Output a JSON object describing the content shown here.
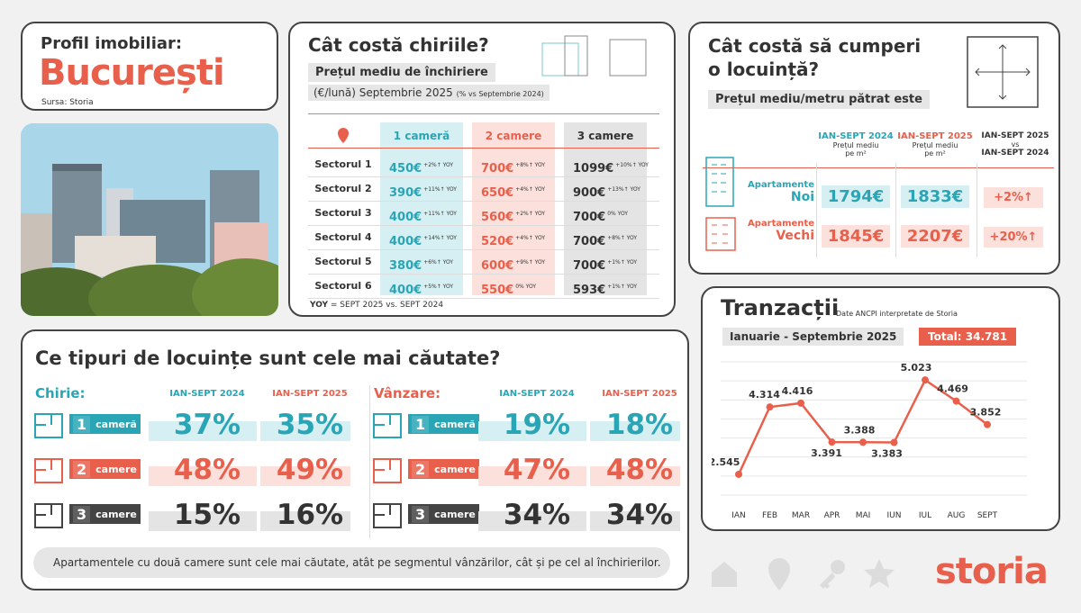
{
  "profile": {
    "title": "Profil imobiliar:",
    "city": "București",
    "source": "Sursa: Storia"
  },
  "rent": {
    "title": "Cât costă chiriile?",
    "subtitle": "Prețul mediu de închiriere",
    "period": "(€/lună) Septembrie 2025",
    "period_note": "(% vs Septembrie 2024)",
    "columns": [
      "1 cameră",
      "2 camere",
      "3 camere"
    ],
    "rows": [
      {
        "label": "Sectorul 1",
        "values": [
          {
            "v": "450€",
            "y": "+2%↑ YOY"
          },
          {
            "v": "700€",
            "y": "+8%↑ YOY"
          },
          {
            "v": "1099€",
            "y": "+10%↑ YOY"
          }
        ]
      },
      {
        "label": "Sectorul 2",
        "values": [
          {
            "v": "390€",
            "y": "+11%↑ YOY"
          },
          {
            "v": "650€",
            "y": "+4%↑ YOY"
          },
          {
            "v": "900€",
            "y": "+13%↑ YOY"
          }
        ]
      },
      {
        "label": "Sectorul 3",
        "values": [
          {
            "v": "400€",
            "y": "+11%↑ YOY"
          },
          {
            "v": "560€",
            "y": "+2%↑ YOY"
          },
          {
            "v": "700€",
            "y": "0% YOY"
          }
        ]
      },
      {
        "label": "Sectorul 4",
        "values": [
          {
            "v": "400€",
            "y": "+14%↑ YOY"
          },
          {
            "v": "520€",
            "y": "+4%↑ YOY"
          },
          {
            "v": "700€",
            "y": "+8%↑ YOY"
          }
        ]
      },
      {
        "label": "Sectorul 5",
        "values": [
          {
            "v": "380€",
            "y": "+6%↑ YOY"
          },
          {
            "v": "600€",
            "y": "+9%↑ YOY"
          },
          {
            "v": "700€",
            "y": "+1%↑ YOY"
          }
        ]
      },
      {
        "label": "Sectorul 6",
        "values": [
          {
            "v": "400€",
            "y": "+5%↑ YOY"
          },
          {
            "v": "550€",
            "y": "0% YOY"
          },
          {
            "v": "593€",
            "y": "+1%↑ YOY"
          }
        ]
      }
    ],
    "footnote_key": "YOY",
    "footnote": " = SEPT 2025 vs. SEPT 2024"
  },
  "buy": {
    "title_1": "Cât costă să cumperi",
    "title_2": "o locuință?",
    "subtitle": "Prețul mediu/metru pătrat este",
    "col1": "IAN-SEPT 2024",
    "col1_sub": "Prețul mediu pe m²",
    "col2": "IAN-SEPT 2025",
    "col2_sub": "Prețul mediu pe m²",
    "col3": "IAN-SEPT 2025",
    "col3_vs": "vs",
    "col3_b": "IAN-SEPT 2024",
    "new_label_1": "Apartamente",
    "new_label_2": "Noi",
    "old_label_1": "Apartamente",
    "old_label_2": "Vechi",
    "new_2024": "1794€",
    "new_2025": "1833€",
    "new_change": "+2%↑",
    "old_2024": "1845€",
    "old_2025": "2207€",
    "old_change": "+20%↑"
  },
  "types": {
    "title": "Ce tipuri de locuințe sunt cele mai căutate?",
    "rent_label": "Chirie:",
    "sale_label": "Vânzare:",
    "col_2024": "IAN-SEPT 2024",
    "col_2025": "IAN-SEPT 2025",
    "rooms": [
      {
        "n": "1",
        "label": "cameră",
        "color": "#2aa5b5"
      },
      {
        "n": "2",
        "label": "camere",
        "color": "#e8604c"
      },
      {
        "n": "3",
        "label": "camere",
        "color": "#444444"
      }
    ],
    "rent_2024": [
      "37%",
      "48%",
      "15%"
    ],
    "rent_2025": [
      "35%",
      "49%",
      "16%"
    ],
    "sale_2024": [
      "19%",
      "47%",
      "34%"
    ],
    "sale_2025": [
      "18%",
      "48%",
      "34%"
    ],
    "note": "Apartamentele cu două camere sunt cele mai căutate, atât pe segmentul vânzărilor, cât și pe cel al închirierilor."
  },
  "tx": {
    "title": "Tranzacții",
    "source": "Date ANCPI interpretate de Storia",
    "period": "Ianuarie - Septembrie 2025",
    "total": "Total: 34.781"
  },
  "chart_data": {
    "type": "line",
    "categories": [
      "IAN",
      "FEB",
      "MAR",
      "APR",
      "MAI",
      "IUN",
      "IUL",
      "AUG",
      "SEPT"
    ],
    "values": [
      2545,
      4314,
      4416,
      3391,
      3388,
      3383,
      5023,
      4469,
      3852
    ],
    "labels": [
      "2.545",
      "4.314",
      "4.416",
      "3.391",
      "3.388",
      "3.383",
      "5.023",
      "4.469",
      "3.852"
    ],
    "color": "#e8604c"
  },
  "brand": {
    "logo": "storia"
  },
  "colors": {
    "teal": "#2aa5b5",
    "red": "#e8604c",
    "dark": "#444444"
  }
}
